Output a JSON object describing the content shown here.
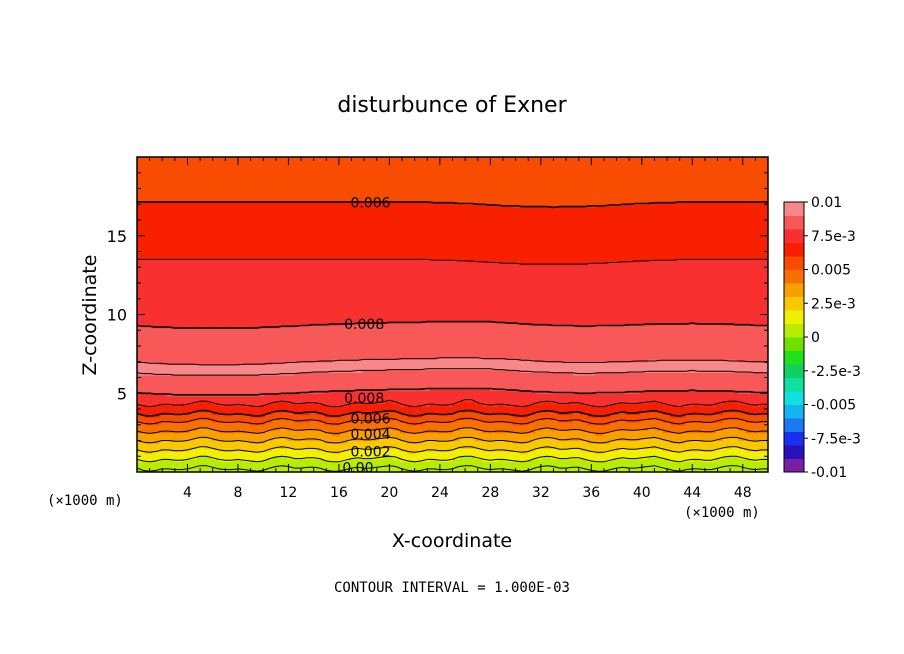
{
  "chart_data": {
    "type": "heatmap",
    "title": "disturbunce of Exner",
    "xlabel": "X-coordinate",
    "ylabel": "Z-coordinate",
    "x_unit_left": "(×1000 m)",
    "x_unit_right": "(×1000 m)",
    "footer": "CONTOUR INTERVAL = 1.000E-03",
    "xlim": [
      0,
      50
    ],
    "ylim": [
      0,
      20
    ],
    "x_ticks": [
      4,
      8,
      12,
      16,
      20,
      24,
      28,
      32,
      36,
      40,
      44,
      48
    ],
    "y_ticks": [
      5,
      10,
      15
    ],
    "colorbar": {
      "labels": [
        "0.01",
        "7.5e-3",
        "0.005",
        "2.5e-3",
        "0",
        "-2.5e-3",
        "-0.005",
        "-7.5e-3",
        "-0.01"
      ],
      "label_values": [
        0.01,
        0.0075,
        0.005,
        0.0025,
        0,
        -0.0025,
        -0.005,
        -0.0075,
        -0.01
      ],
      "range": [
        -0.01,
        0.01
      ],
      "colors_low_to_high": [
        "#7a1fa0",
        "#2a10b8",
        "#1a30f0",
        "#1e78f0",
        "#14b4f0",
        "#10e0e0",
        "#10e0a0",
        "#10d060",
        "#20e020",
        "#70e000",
        "#b8ec00",
        "#f0f000",
        "#f8c800",
        "#f8a000",
        "#f87000",
        "#f84c00",
        "#f82000",
        "#f83030",
        "#f85858",
        "#f88888"
      ]
    },
    "contour_labels": [
      {
        "text": "0.006",
        "x": 18.5,
        "z": 17.1
      },
      {
        "text": "0.008",
        "x": 18.0,
        "z": 9.4
      },
      {
        "text": "0.008",
        "x": 18.0,
        "z": 4.7
      },
      {
        "text": "0.006",
        "x": 18.5,
        "z": 3.4
      },
      {
        "text": "0.004",
        "x": 18.5,
        "z": 2.4
      },
      {
        "text": "0.002",
        "x": 18.5,
        "z": 1.3
      },
      {
        "text": "0.00",
        "x": 17.5,
        "z": 0.3
      }
    ],
    "profile": {
      "z": [
        0.2,
        0.8,
        1.4,
        2.0,
        2.6,
        3.2,
        3.7,
        4.3,
        5.0,
        6.5,
        8.2,
        9.3,
        10.5,
        12.6,
        14.5,
        16.2,
        17.2,
        18.7,
        20.0
      ],
      "value": [
        0.0,
        0.001,
        0.002,
        0.003,
        0.004,
        0.005,
        0.006,
        0.007,
        0.008,
        0.0092,
        0.0085,
        0.008,
        0.0076,
        0.0072,
        0.0068,
        0.0064,
        0.006,
        0.0056,
        0.0053
      ]
    }
  }
}
